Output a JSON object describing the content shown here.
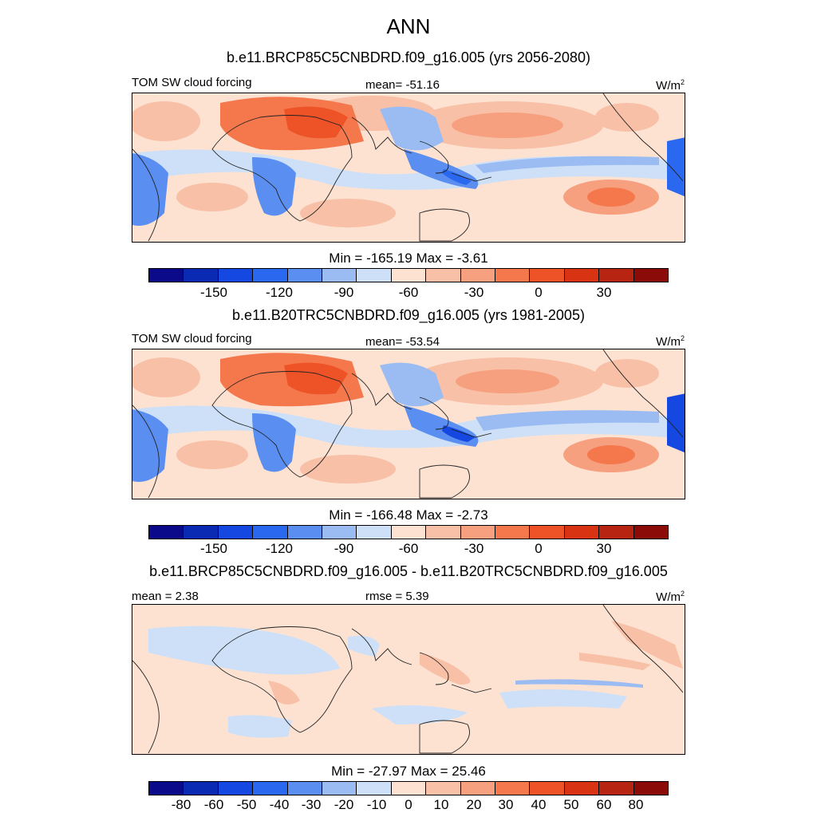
{
  "title": "ANN",
  "colors": {
    "palette": [
      "#0a0a8a",
      "#0a2ab4",
      "#1448e0",
      "#2a68f0",
      "#5a8ef0",
      "#9bbcf2",
      "#cde0f8",
      "#fde2d2",
      "#f8c0a6",
      "#f7a07f",
      "#f5784d",
      "#ee5328",
      "#d83413",
      "#b82412",
      "#8a0b07"
    ]
  },
  "panels": [
    {
      "id": "future",
      "title": "b.e11.BRCP85C5CNBDRD.f09_g16.005 (yrs 2056-2080)",
      "left_label": "TOM SW cloud forcing",
      "center_label": "mean= -51.16",
      "units": "W/m",
      "units_sup": "2",
      "minmax": "Min = -165.19 Max =  -3.61",
      "ticks": [
        "-150",
        "-120",
        "-90",
        "-60",
        "-30",
        "0",
        "30"
      ]
    },
    {
      "id": "present",
      "title": "b.e11.B20TRC5CNBDRD.f09_g16.005 (yrs 1981-2005)",
      "left_label": "TOM SW cloud forcing",
      "center_label": "mean= -53.54",
      "units": "W/m",
      "units_sup": "2",
      "minmax": "Min = -166.48 Max =  -2.73",
      "ticks": [
        "-150",
        "-120",
        "-90",
        "-60",
        "-30",
        "0",
        "30"
      ]
    },
    {
      "id": "difference",
      "title": "b.e11.BRCP85C5CNBDRD.f09_g16.005 - b.e11.B20TRC5CNBDRD.f09_g16.005",
      "left_label": "mean =   2.38",
      "center_label": "rmse =   5.39",
      "units": "W/m",
      "units_sup": "2",
      "minmax": "Min = -27.97 Max =  25.46",
      "ticks": [
        "-80",
        "-60",
        "-50",
        "-40",
        "-30",
        "-20",
        "-10",
        "0",
        "10",
        "20",
        "30",
        "40",
        "50",
        "60",
        "80"
      ]
    }
  ]
}
